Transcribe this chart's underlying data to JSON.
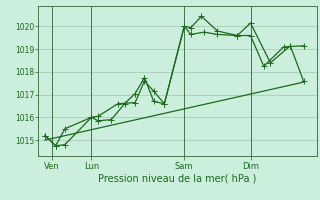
{
  "background_color": "#cceedd",
  "plot_bg_color": "#cceedd",
  "line_color": "#1a6b1a",
  "grid_color": "#99bbaa",
  "tick_color": "#1a6b1a",
  "axis_color": "#336633",
  "xlabel": "Pression niveau de la mer( hPa )",
  "ylim": [
    1014.3,
    1020.9
  ],
  "yticks": [
    1015,
    1016,
    1017,
    1018,
    1019,
    1020
  ],
  "day_labels": [
    "Ven",
    "Lun",
    "Sam",
    "Dim"
  ],
  "day_positions": [
    0.5,
    3.5,
    10.5,
    15.5
  ],
  "day_vlines": [
    0.5,
    3.5,
    10.5,
    15.5
  ],
  "xlim": [
    -0.5,
    20.5
  ],
  "series1_x": [
    0,
    0.8,
    1.5,
    3.5,
    4.0,
    5.0,
    6.0,
    6.8,
    7.5,
    8.2,
    9.0,
    10.5,
    11.0,
    11.8,
    13.0,
    14.5,
    15.5,
    16.5,
    18.0,
    19.5
  ],
  "series1_y": [
    1015.2,
    1014.75,
    1014.8,
    1016.0,
    1015.85,
    1015.9,
    1016.6,
    1017.05,
    1017.75,
    1016.7,
    1016.6,
    1020.0,
    1019.95,
    1020.45,
    1019.8,
    1019.6,
    1019.6,
    1018.25,
    1019.1,
    1019.15
  ],
  "series2_x": [
    0,
    0.8,
    1.5,
    3.5,
    4.0,
    5.5,
    6.8,
    7.5,
    8.2,
    9.0,
    10.5,
    11.0,
    12.0,
    13.0,
    14.5,
    15.5,
    17.0,
    18.5,
    19.5
  ],
  "series2_y": [
    1015.2,
    1014.75,
    1015.5,
    1016.0,
    1016.05,
    1016.6,
    1016.65,
    1017.6,
    1017.15,
    1016.6,
    1020.0,
    1019.65,
    1019.75,
    1019.65,
    1019.6,
    1020.15,
    1018.4,
    1019.15,
    1017.6
  ],
  "trend_x": [
    0,
    19.5
  ],
  "trend_y": [
    1015.0,
    1017.55
  ],
  "marker_size": 4,
  "linewidth": 0.9,
  "ylabel_fontsize": 5.5,
  "xlabel_fontsize": 7,
  "xlabel_color": "#1a6b1a"
}
